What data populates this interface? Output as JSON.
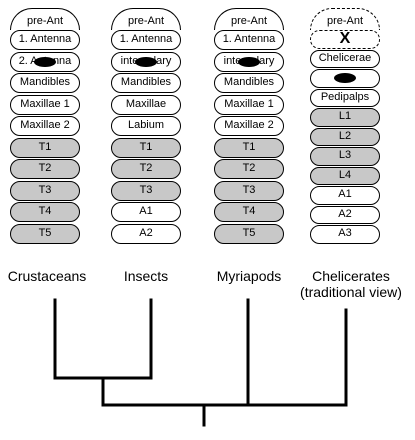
{
  "columns": [
    {
      "name": "Crustaceans",
      "cap": "pre-Ant",
      "cap_dashed": false,
      "segments": [
        {
          "label": "1. Antenna",
          "shaded": false,
          "blob": false
        },
        {
          "label": "2. Antenna",
          "shaded": false,
          "blob": true
        },
        {
          "label": "Mandibles",
          "shaded": false,
          "blob": false
        },
        {
          "label": "Maxillae  1",
          "shaded": false,
          "blob": false
        },
        {
          "label": "Maxillae  2",
          "shaded": false,
          "blob": false
        },
        {
          "label": "T1",
          "shaded": true,
          "blob": false
        },
        {
          "label": "T2",
          "shaded": true,
          "blob": false
        },
        {
          "label": "T3",
          "shaded": true,
          "blob": false
        },
        {
          "label": "T4",
          "shaded": true,
          "blob": false
        },
        {
          "label": "T5",
          "shaded": true,
          "blob": false
        }
      ]
    },
    {
      "name": "Insects",
      "cap": "pre-Ant",
      "cap_dashed": false,
      "segments": [
        {
          "label": "1. Antenna",
          "shaded": false,
          "blob": false
        },
        {
          "label": "intercalary",
          "shaded": false,
          "blob": true
        },
        {
          "label": "Mandibles",
          "shaded": false,
          "blob": false
        },
        {
          "label": "Maxillae",
          "shaded": false,
          "blob": false
        },
        {
          "label": "Labium",
          "shaded": false,
          "blob": false
        },
        {
          "label": "T1",
          "shaded": true,
          "blob": false
        },
        {
          "label": "T2",
          "shaded": true,
          "blob": false
        },
        {
          "label": "T3",
          "shaded": true,
          "blob": false
        },
        {
          "label": "A1",
          "shaded": false,
          "blob": false
        },
        {
          "label": "A2",
          "shaded": false,
          "blob": false
        }
      ]
    },
    {
      "name": "Myriapods",
      "cap": "pre-Ant",
      "cap_dashed": false,
      "segments": [
        {
          "label": "1. Antenna",
          "shaded": false,
          "blob": false
        },
        {
          "label": "intercalary",
          "shaded": false,
          "blob": true
        },
        {
          "label": "Mandibles",
          "shaded": false,
          "blob": false
        },
        {
          "label": "Maxillae  1",
          "shaded": false,
          "blob": false
        },
        {
          "label": "Maxillae  2",
          "shaded": false,
          "blob": false
        },
        {
          "label": "T1",
          "shaded": true,
          "blob": false
        },
        {
          "label": "T2",
          "shaded": true,
          "blob": false
        },
        {
          "label": "T3",
          "shaded": true,
          "blob": false
        },
        {
          "label": "T4",
          "shaded": true,
          "blob": false
        },
        {
          "label": "T5",
          "shaded": true,
          "blob": false
        }
      ]
    },
    {
      "name": "Chelicerates\n(traditional view)",
      "cap": "pre-Ant",
      "cap_dashed": true,
      "segments": [
        {
          "label": "X",
          "shaded": false,
          "blob": false,
          "big": true,
          "dashed": true
        },
        {
          "label": "Chelicerae",
          "shaded": false,
          "blob": false
        },
        {
          "label": "",
          "shaded": false,
          "blob": true
        },
        {
          "label": "Pedipalps",
          "shaded": false,
          "blob": false
        },
        {
          "label": "L1",
          "shaded": true,
          "blob": false
        },
        {
          "label": "L2",
          "shaded": true,
          "blob": false
        },
        {
          "label": "L3",
          "shaded": true,
          "blob": false
        },
        {
          "label": "L4",
          "shaded": true,
          "blob": false
        },
        {
          "label": "A1",
          "shaded": false,
          "blob": false
        },
        {
          "label": "A2",
          "shaded": false,
          "blob": false
        },
        {
          "label": "A3",
          "shaded": false,
          "blob": false
        }
      ]
    }
  ],
  "colors": {
    "segment_fill": "#ffffff",
    "shaded_fill": "#c8c8c8",
    "stroke": "#000000"
  }
}
